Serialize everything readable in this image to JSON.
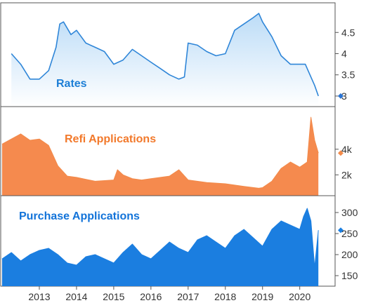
{
  "chart_data": [
    {
      "type": "area",
      "title": "Rates",
      "title_color": "#1c7ed6",
      "line_color": "#2f86d8",
      "fill_color": "#bcdcf7",
      "marker_color": "#2a74d4",
      "ylim": [
        2.85,
        5.1
      ],
      "yticks": [
        3,
        3.5,
        4,
        4.5
      ],
      "ytick_labels": [
        "3",
        "3.5",
        "4",
        "4.5"
      ],
      "last_value": 3.0,
      "x": [
        2012.25,
        2012.5,
        2012.75,
        2013.0,
        2013.25,
        2013.45,
        2013.55,
        2013.65,
        2013.85,
        2014.0,
        2014.25,
        2014.5,
        2014.75,
        2015.0,
        2015.25,
        2015.5,
        2015.75,
        2016.0,
        2016.25,
        2016.5,
        2016.75,
        2016.9,
        2017.0,
        2017.25,
        2017.5,
        2017.75,
        2018.0,
        2018.25,
        2018.5,
        2018.75,
        2018.9,
        2019.0,
        2019.25,
        2019.5,
        2019.75,
        2020.0,
        2020.15,
        2020.25,
        2020.4,
        2020.5
      ],
      "values": [
        4.0,
        3.75,
        3.4,
        3.4,
        3.6,
        4.15,
        4.7,
        4.75,
        4.45,
        4.55,
        4.25,
        4.15,
        4.05,
        3.75,
        3.85,
        4.1,
        3.95,
        3.8,
        3.65,
        3.5,
        3.4,
        3.45,
        4.25,
        4.2,
        4.05,
        3.95,
        4.0,
        4.55,
        4.7,
        4.85,
        4.95,
        4.75,
        4.4,
        3.95,
        3.75,
        3.75,
        3.75,
        3.55,
        3.25,
        3.0
      ]
    },
    {
      "type": "area",
      "title": "Refi Applications",
      "title_color": "#f2792b",
      "line_color": "#f28a4a",
      "fill_color": "#f58a4e",
      "marker_color": "#f28a4a",
      "ylim": [
        700,
        7000
      ],
      "yticks": [
        2000,
        4000
      ],
      "ytick_labels": [
        "2k",
        "4k"
      ],
      "last_value": 3700,
      "x": [
        2012.0,
        2012.25,
        2012.5,
        2012.75,
        2013.0,
        2013.25,
        2013.5,
        2013.75,
        2014.0,
        2014.5,
        2015.0,
        2015.1,
        2015.25,
        2015.5,
        2015.75,
        2016.0,
        2016.5,
        2016.75,
        2017.0,
        2017.5,
        2018.0,
        2018.5,
        2018.9,
        2019.0,
        2019.25,
        2019.5,
        2019.75,
        2020.0,
        2020.2,
        2020.3,
        2020.4,
        2020.5
      ],
      "values": [
        4400,
        4800,
        5200,
        4700,
        4800,
        4300,
        2700,
        1900,
        1800,
        1500,
        1600,
        2400,
        2000,
        1700,
        1600,
        1700,
        1900,
        2400,
        1600,
        1400,
        1300,
        1100,
        950,
        1000,
        1500,
        2500,
        3000,
        2600,
        3000,
        6500,
        4700,
        3700
      ]
    },
    {
      "type": "area",
      "title": "Purchase Applications",
      "title_color": "#1273d9",
      "line_color": "#1b7ee0",
      "fill_color": "#1b7ee0",
      "marker_color": "#1b7ee0",
      "ylim": [
        135,
        330
      ],
      "yticks": [
        150,
        200,
        250,
        300
      ],
      "ytick_labels": [
        "150",
        "200",
        "250",
        "300"
      ],
      "last_value": 258,
      "x": [
        2012.0,
        2012.25,
        2012.5,
        2012.75,
        2013.0,
        2013.25,
        2013.5,
        2013.75,
        2014.0,
        2014.25,
        2014.5,
        2014.75,
        2015.0,
        2015.25,
        2015.5,
        2015.75,
        2016.0,
        2016.25,
        2016.5,
        2016.75,
        2017.0,
        2017.25,
        2017.5,
        2017.75,
        2018.0,
        2018.25,
        2018.5,
        2018.75,
        2019.0,
        2019.25,
        2019.5,
        2019.75,
        2020.0,
        2020.1,
        2020.2,
        2020.3,
        2020.4,
        2020.5
      ],
      "values": [
        190,
        205,
        185,
        200,
        210,
        215,
        200,
        180,
        175,
        195,
        200,
        190,
        180,
        205,
        225,
        200,
        190,
        210,
        230,
        215,
        205,
        235,
        245,
        230,
        215,
        245,
        260,
        240,
        220,
        260,
        280,
        270,
        260,
        290,
        310,
        280,
        170,
        258
      ]
    }
  ],
  "x_axis": {
    "ticks": [
      2013,
      2014,
      2015,
      2016,
      2017,
      2018,
      2019,
      2020
    ],
    "labels": [
      "2013",
      "2014",
      "2015",
      "2016",
      "2017",
      "2018",
      "2019",
      "2020"
    ],
    "xlim": [
      2012.0,
      2020.95
    ]
  }
}
